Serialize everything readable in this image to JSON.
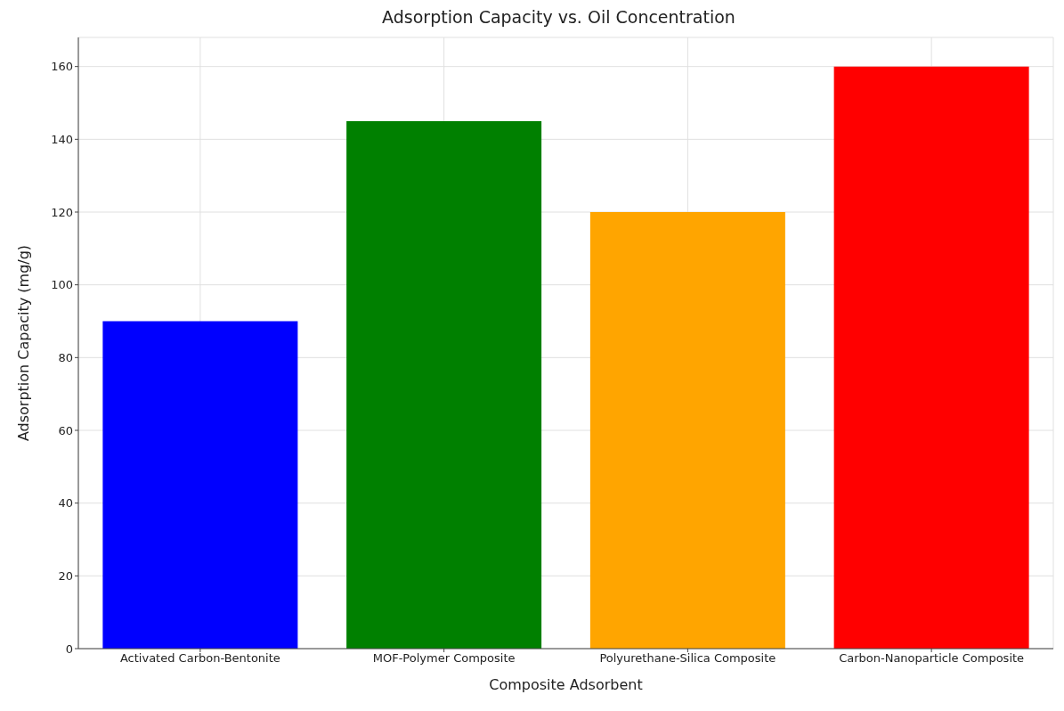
{
  "chart_data": {
    "type": "bar",
    "title": "Adsorption Capacity vs. Oil Concentration",
    "xlabel": "Composite Adsorbent",
    "ylabel": "Adsorption Capacity (mg/g)",
    "categories": [
      "Activated Carbon-Bentonite",
      "MOF-Polymer Composite",
      "Polyurethane-Silica Composite",
      "Carbon-Nanoparticle Composite"
    ],
    "values": [
      90,
      145,
      120,
      160
    ],
    "colors": [
      "#0000ff",
      "#008000",
      "#ffa500",
      "#ff0000"
    ],
    "ylim": [
      0,
      168
    ],
    "yticks": [
      0,
      20,
      40,
      60,
      80,
      100,
      120,
      140,
      160
    ],
    "grid": true
  }
}
